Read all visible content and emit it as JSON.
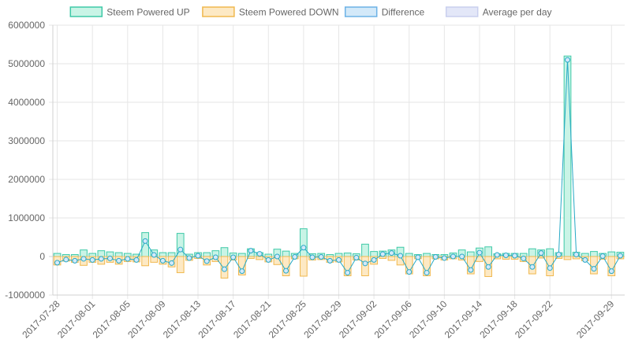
{
  "chart_data": {
    "type": "bar",
    "legend_placement": "top",
    "grid": true,
    "ylim": [
      -1000000,
      6000000
    ],
    "y_ticks": [
      6000000,
      5000000,
      4000000,
      3000000,
      2000000,
      1000000,
      0,
      -1000000
    ],
    "x_tick_labels": [
      "2017-07-28",
      "2017-08-01",
      "2017-08-05",
      "2017-08-09",
      "2017-08-13",
      "2017-08-17",
      "2017-08-21",
      "2017-08-25",
      "2017-08-29",
      "2017-09-02",
      "2017-09-06",
      "2017-09-10",
      "2017-09-14",
      "2017-09-18",
      "2017-09-22",
      "2017-09-29"
    ],
    "legend": [
      {
        "label": "Steem Powered UP",
        "fill": "#c9f4e6",
        "stroke": "#3ec9a7"
      },
      {
        "label": "Steem Powered DOWN",
        "fill": "#fde9c4",
        "stroke": "#f0b84e"
      },
      {
        "label": "Difference",
        "fill": "#d3e9f9",
        "stroke": "#6cb2e6"
      },
      {
        "label": "Average per day",
        "fill": "#e3e7f8",
        "stroke": "#c9cfee"
      }
    ],
    "colors": {
      "up": "#3ec9a7",
      "down": "#f0b84e",
      "difference": "#27a9c6",
      "grid": "#e6e6e6",
      "axis_text": "#666666"
    },
    "categories": [
      "2017-07-28",
      "2017-07-29",
      "2017-07-30",
      "2017-07-31",
      "2017-08-01",
      "2017-08-02",
      "2017-08-03",
      "2017-08-04",
      "2017-08-05",
      "2017-08-06",
      "2017-08-07",
      "2017-08-08",
      "2017-08-09",
      "2017-08-10",
      "2017-08-11",
      "2017-08-12",
      "2017-08-13",
      "2017-08-14",
      "2017-08-15",
      "2017-08-16",
      "2017-08-17",
      "2017-08-18",
      "2017-08-19",
      "2017-08-20",
      "2017-08-21",
      "2017-08-22",
      "2017-08-23",
      "2017-08-24",
      "2017-08-25",
      "2017-08-26",
      "2017-08-27",
      "2017-08-28",
      "2017-08-29",
      "2017-08-30",
      "2017-08-31",
      "2017-09-01",
      "2017-09-02",
      "2017-09-03",
      "2017-09-04",
      "2017-09-05",
      "2017-09-06",
      "2017-09-07",
      "2017-09-08",
      "2017-09-09",
      "2017-09-10",
      "2017-09-11",
      "2017-09-12",
      "2017-09-13",
      "2017-09-14",
      "2017-09-15",
      "2017-09-16",
      "2017-09-17",
      "2017-09-18",
      "2017-09-19",
      "2017-09-20",
      "2017-09-21",
      "2017-09-22",
      "2017-09-23",
      "2017-09-24",
      "2017-09-25",
      "2017-09-26",
      "2017-09-27",
      "2017-09-28",
      "2017-09-29",
      "2017-09-30"
    ],
    "series": [
      {
        "name": "Steem Powered UP",
        "values": [
          80000,
          50000,
          50000,
          170000,
          80000,
          150000,
          120000,
          100000,
          80000,
          60000,
          620000,
          170000,
          100000,
          100000,
          600000,
          60000,
          100000,
          100000,
          150000,
          230000,
          90000,
          80000,
          200000,
          100000,
          60000,
          190000,
          140000,
          80000,
          720000,
          70000,
          80000,
          50000,
          80000,
          90000,
          70000,
          320000,
          130000,
          140000,
          170000,
          240000,
          80000,
          50000,
          80000,
          50000,
          50000,
          90000,
          170000,
          120000,
          220000,
          250000,
          70000,
          80000,
          80000,
          80000,
          200000,
          170000,
          200000,
          100000,
          5200000,
          110000,
          80000,
          130000,
          80000,
          120000,
          110000
        ]
      },
      {
        "name": "Steem Powered DOWN",
        "values": [
          -220000,
          -120000,
          -150000,
          -230000,
          -150000,
          -200000,
          -150000,
          -200000,
          -130000,
          -140000,
          -240000,
          -150000,
          -200000,
          -270000,
          -420000,
          -100000,
          -50000,
          -220000,
          -130000,
          -560000,
          -90000,
          -480000,
          -50000,
          -80000,
          -140000,
          -210000,
          -500000,
          -60000,
          -510000,
          -90000,
          -80000,
          -150000,
          -140000,
          -500000,
          -90000,
          -500000,
          -200000,
          -50000,
          -100000,
          -220000,
          -450000,
          -60000,
          -500000,
          -60000,
          -90000,
          -60000,
          -90000,
          -450000,
          -130000,
          -520000,
          -60000,
          -70000,
          -70000,
          -130000,
          -450000,
          -40000,
          -500000,
          -50000,
          -80000,
          -60000,
          -110000,
          -450000,
          -70000,
          -500000,
          -60000
        ]
      },
      {
        "name": "Difference",
        "values": [
          -160000,
          -80000,
          -110000,
          -60000,
          -90000,
          -60000,
          -50000,
          -110000,
          -60000,
          -90000,
          400000,
          40000,
          -110000,
          -170000,
          180000,
          -40000,
          20000,
          -120000,
          -20000,
          -330000,
          -20000,
          -380000,
          150000,
          70000,
          -90000,
          0,
          -370000,
          -10000,
          230000,
          -20000,
          -10000,
          -110000,
          -90000,
          -420000,
          -30000,
          -180000,
          -90000,
          60000,
          90000,
          20000,
          -400000,
          -20000,
          -420000,
          -10000,
          -40000,
          0,
          0,
          -350000,
          100000,
          -270000,
          40000,
          30000,
          20000,
          -50000,
          -270000,
          90000,
          -300000,
          50000,
          5100000,
          50000,
          -90000,
          -320000,
          10000,
          -380000,
          20000
        ]
      }
    ]
  }
}
